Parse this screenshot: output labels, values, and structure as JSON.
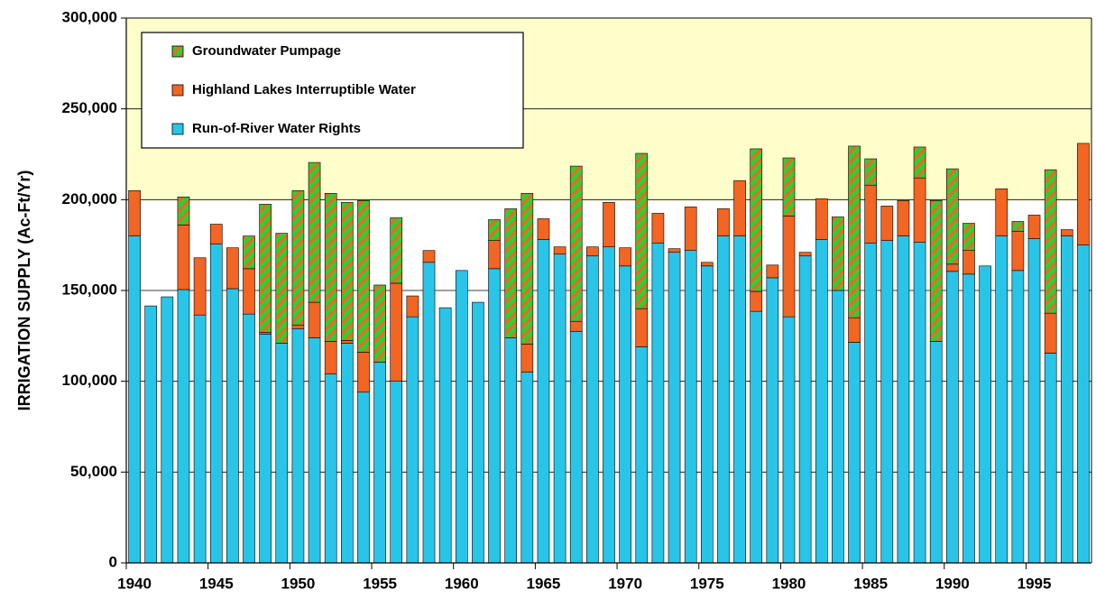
{
  "chart_data": {
    "type": "bar",
    "stacked": true,
    "ylabel": "IRRIGATION SUPPLY (Ac-Ft/Yr)",
    "x": [
      1940,
      1941,
      1942,
      1943,
      1944,
      1945,
      1946,
      1947,
      1948,
      1949,
      1950,
      1951,
      1952,
      1953,
      1954,
      1955,
      1956,
      1957,
      1958,
      1959,
      1960,
      1961,
      1962,
      1963,
      1964,
      1965,
      1966,
      1967,
      1968,
      1969,
      1970,
      1971,
      1972,
      1973,
      1974,
      1975,
      1976,
      1977,
      1978,
      1979,
      1980,
      1981,
      1982,
      1983,
      1984,
      1985,
      1986,
      1987,
      1988,
      1989,
      1990,
      1991,
      1992,
      1993,
      1994,
      1995,
      1996,
      1997,
      1998
    ],
    "xlim": [
      1939.5,
      1998.5
    ],
    "xticks": [
      1940,
      1945,
      1950,
      1955,
      1960,
      1965,
      1970,
      1975,
      1980,
      1985,
      1990,
      1995
    ],
    "ylim": [
      0,
      300000
    ],
    "yticks": [
      0,
      {
        "value": 50000,
        "label": "50,000"
      },
      {
        "value": 100000,
        "label": "100,000"
      },
      {
        "value": 150000,
        "label": "150,000"
      },
      {
        "value": 200000,
        "label": "200,000"
      },
      {
        "value": 250000,
        "label": "250,000"
      },
      {
        "value": 300000,
        "label": "300,000"
      }
    ],
    "grid": true,
    "legend": "upper left",
    "series": [
      {
        "name": "Run-of-River Water Rights",
        "color": "#29c5e8",
        "values": [
          180000,
          141500,
          146500,
          150500,
          136500,
          175500,
          151000,
          137000,
          126000,
          121000,
          129000,
          124000,
          104000,
          121000,
          94000,
          110500,
          100000,
          135500,
          165500,
          140500,
          161000,
          143500,
          162000,
          124000,
          105000,
          178000,
          170000,
          127500,
          169000,
          174000,
          163500,
          119000,
          176000,
          171000,
          172000,
          163500,
          180000,
          180000,
          138500,
          157000,
          135500,
          169000,
          178000,
          150000,
          121500,
          176000,
          177500,
          180000,
          176500,
          122000,
          160500,
          159000,
          163500,
          180000,
          161000,
          178500,
          115500,
          180000,
          175000
        ]
      },
      {
        "name": "Highland Lakes Interruptible Water",
        "color": "#f26522",
        "values": [
          25000,
          0,
          0,
          35500,
          31500,
          11000,
          22500,
          25000,
          1000,
          0,
          2000,
          19500,
          18000,
          1500,
          22000,
          0,
          54000,
          11500,
          6500,
          0,
          0,
          0,
          15500,
          0,
          15500,
          11500,
          4000,
          5500,
          5000,
          24500,
          10000,
          21000,
          16500,
          2000,
          24000,
          2000,
          15000,
          30500,
          11000,
          7000,
          55500,
          2000,
          22500,
          0,
          13500,
          32000,
          19000,
          19500,
          35500,
          0,
          4000,
          13000,
          0,
          26000,
          21500,
          13000,
          22000,
          3500,
          56000
        ]
      },
      {
        "name": "Groundwater Pumpage",
        "color": "#33cc33",
        "values": [
          0,
          0,
          0,
          15500,
          0,
          0,
          0,
          18000,
          70500,
          60500,
          74000,
          77000,
          81500,
          76000,
          83500,
          42500,
          36000,
          0,
          0,
          0,
          0,
          0,
          11500,
          71000,
          83000,
          0,
          0,
          85500,
          0,
          0,
          0,
          85500,
          0,
          0,
          0,
          0,
          0,
          0,
          78500,
          0,
          32000,
          0,
          0,
          40500,
          94500,
          14500,
          0,
          0,
          17000,
          77500,
          52500,
          15000,
          0,
          0,
          5500,
          0,
          79000,
          0,
          0
        ]
      }
    ]
  }
}
